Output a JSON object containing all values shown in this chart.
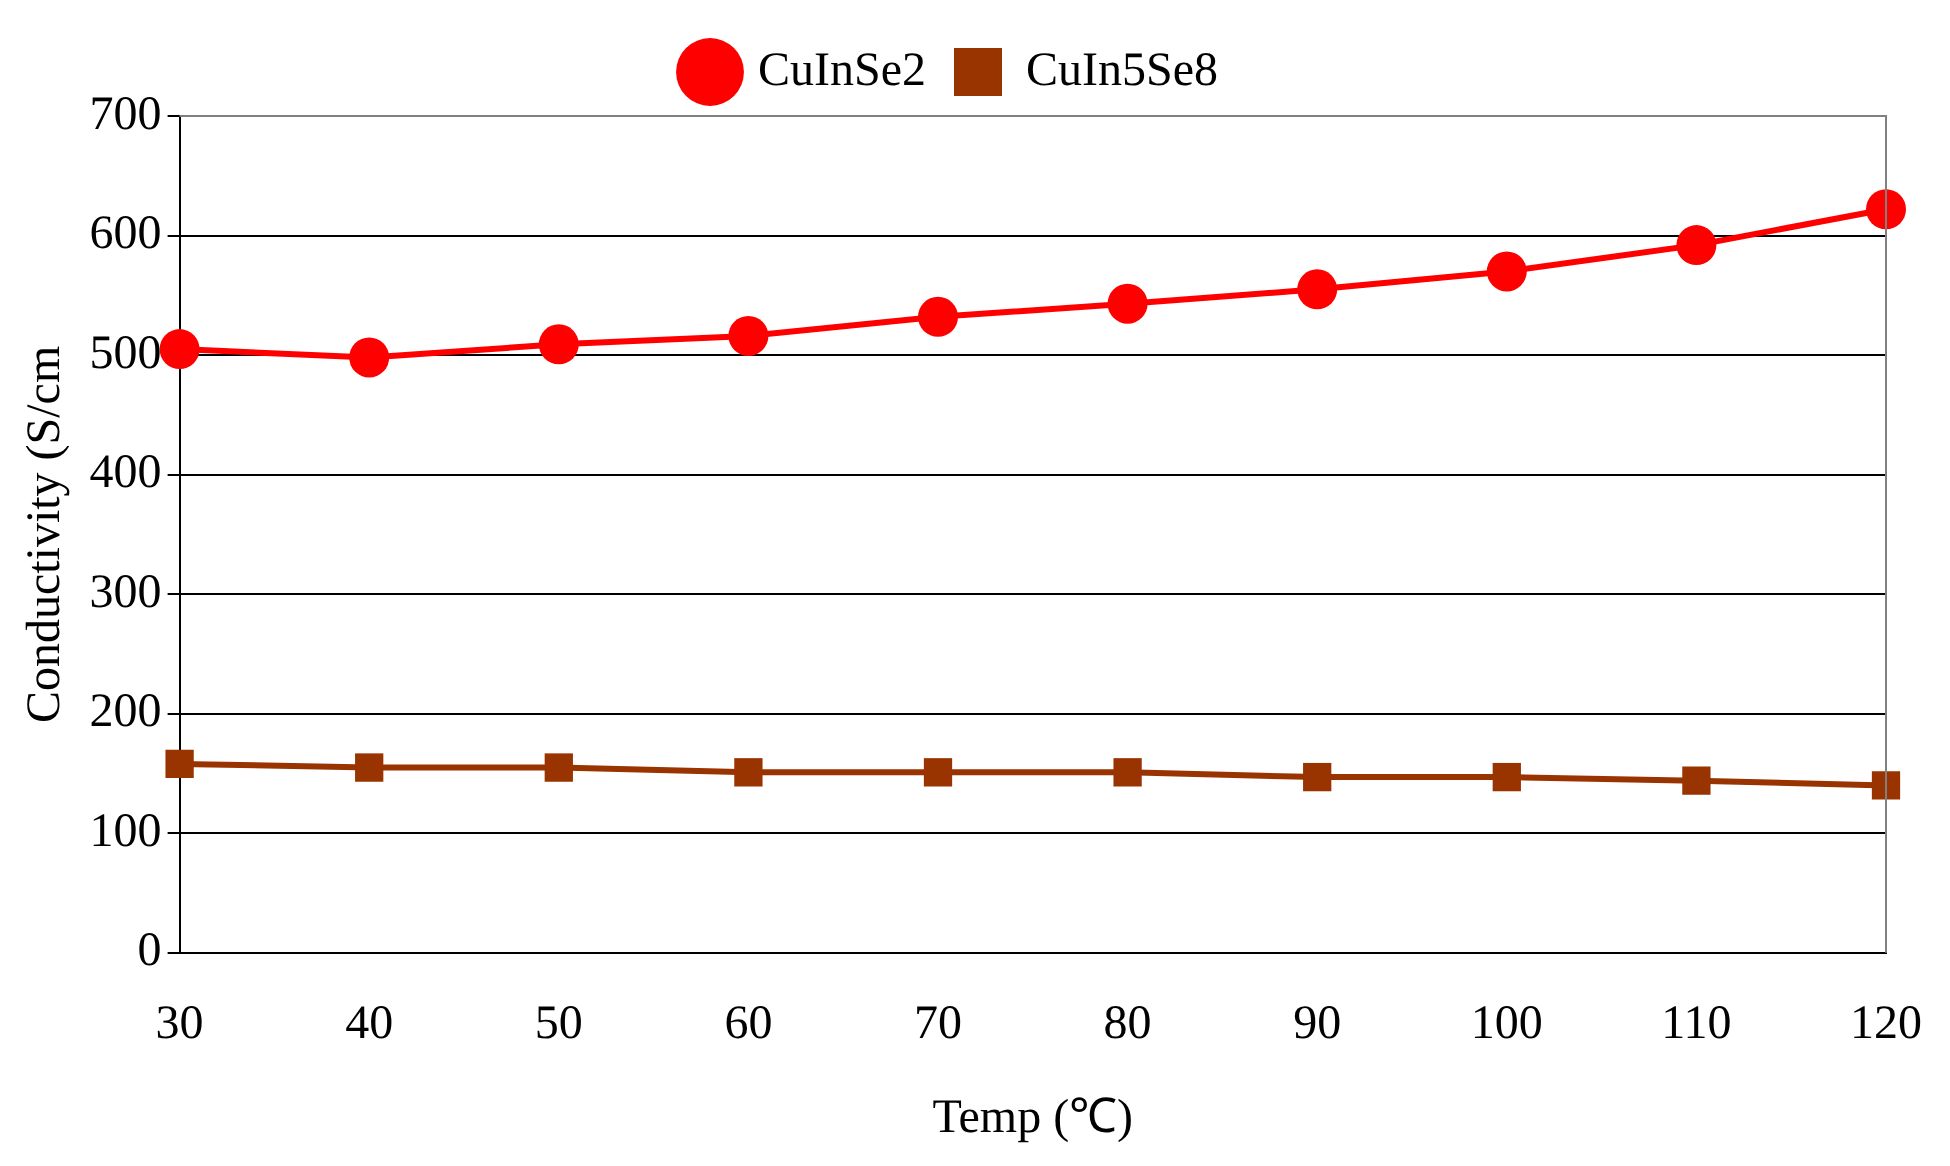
{
  "chart_data": {
    "type": "line",
    "xlabel": "Temp (℃)",
    "ylabel": "Conductivity (S/cm",
    "categories": [
      "30",
      "40",
      "50",
      "60",
      "70",
      "80",
      "90",
      "100",
      "110",
      "120"
    ],
    "series": [
      {
        "name": "CuInSe2",
        "color": "#ff0000",
        "marker": "circle",
        "values": [
          505,
          498,
          509,
          516,
          532,
          543,
          555,
          570,
          592,
          622
        ]
      },
      {
        "name": "CuIn5Se8",
        "color": "#993300",
        "marker": "square",
        "values": [
          158,
          155,
          155,
          151,
          151,
          151,
          147,
          147,
          144,
          140
        ]
      }
    ],
    "ylim": [
      0,
      700
    ],
    "yticks": [
      0,
      100,
      200,
      300,
      400,
      500,
      600,
      700
    ],
    "grid": "y",
    "legend": "top",
    "line_style": "solid"
  }
}
